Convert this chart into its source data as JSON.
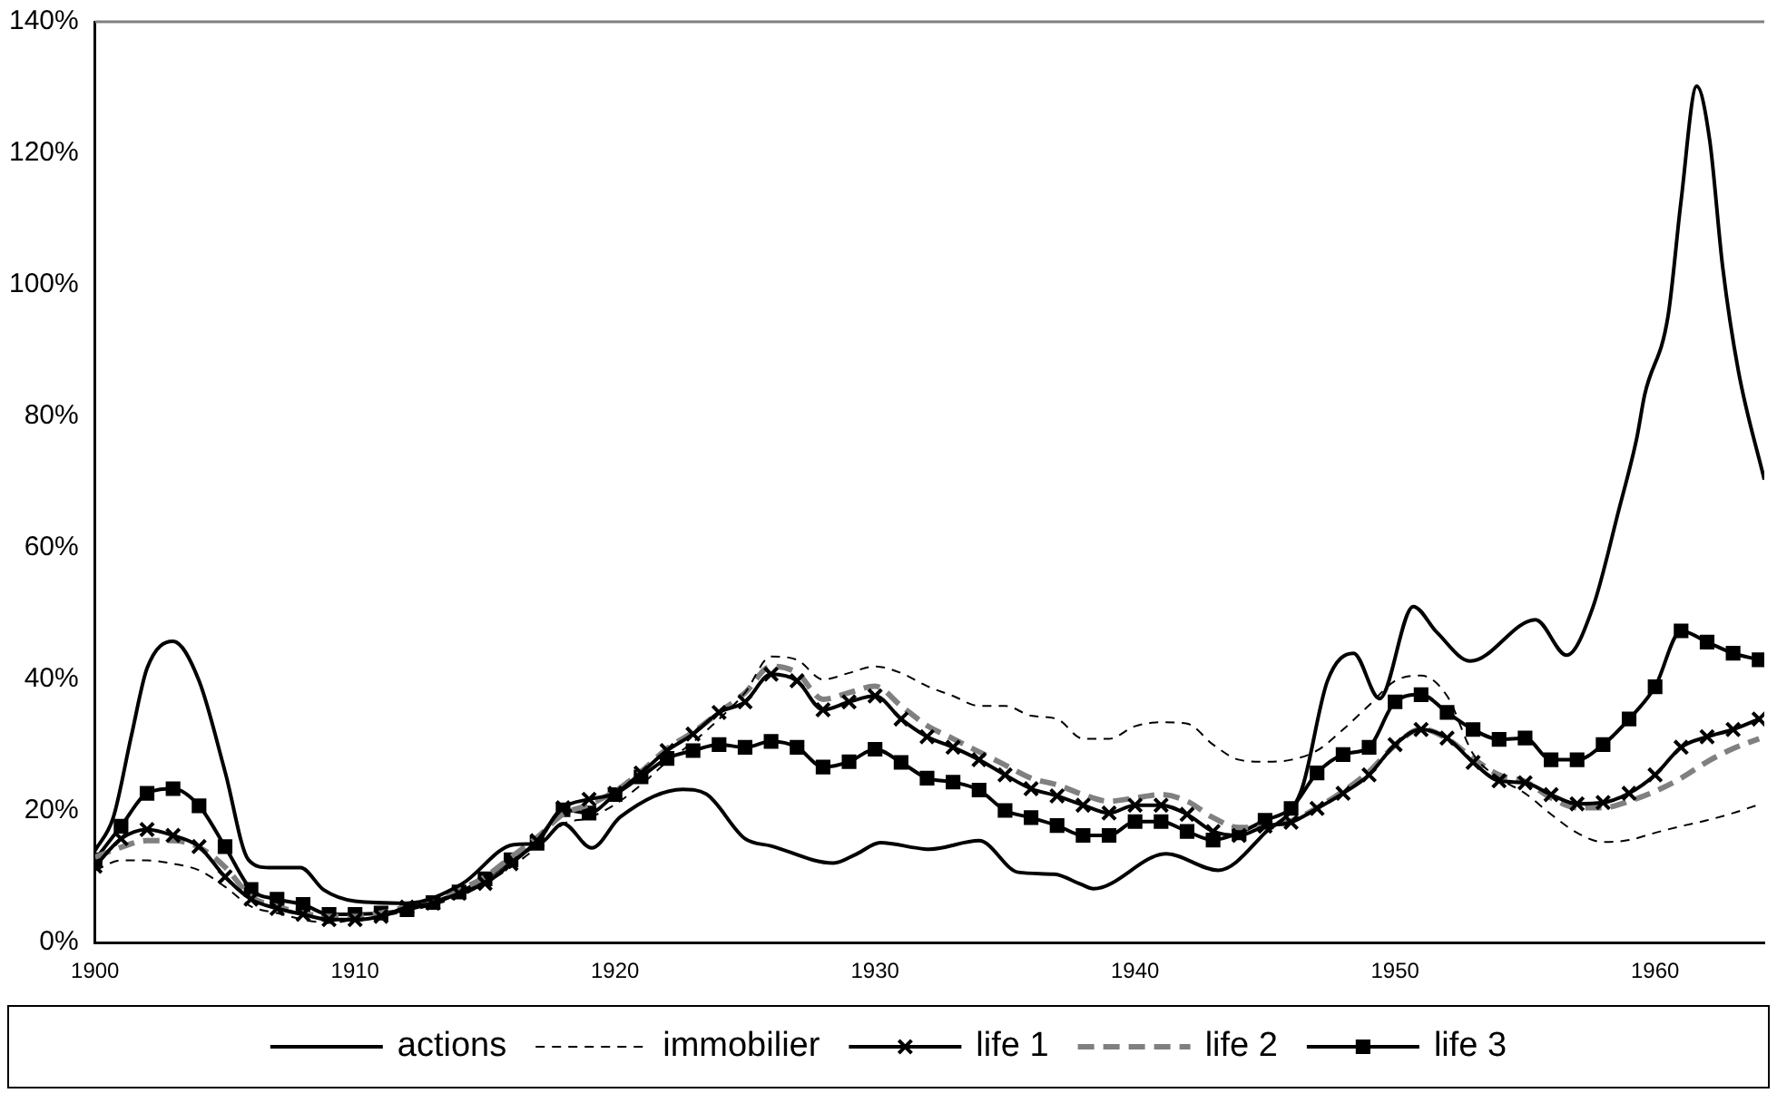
{
  "chart_data": {
    "type": "line",
    "x": [
      1900,
      1901,
      1902,
      1903,
      1904,
      1905,
      1906,
      1907,
      1908,
      1909,
      1910,
      1911,
      1912,
      1913,
      1914,
      1915,
      1916,
      1917,
      1918,
      1919,
      1920,
      1921,
      1922,
      1923,
      1924,
      1925,
      1926,
      1927,
      1928,
      1929,
      1930,
      1931,
      1932,
      1933,
      1934,
      1935,
      1936,
      1937,
      1938,
      1939,
      1940,
      1941,
      1942,
      1943,
      1944,
      1945,
      1946,
      1947,
      1948,
      1949,
      1950,
      1951,
      1952,
      1953,
      1954,
      1955,
      1956,
      1957,
      1958,
      1959,
      1960,
      1961,
      1962,
      1963,
      1964
    ],
    "series": [
      {
        "name": "actions",
        "color": "#000000",
        "line_style": "solid",
        "marker": "none",
        "x": [
          1900,
          1900.7,
          1901.4,
          1902,
          1903,
          1904,
          1905,
          1905.9,
          1906.7,
          1907.9,
          1908.8,
          1910,
          1912,
          1914.1,
          1916.1,
          1917.1,
          1918,
          1919.1,
          1920.2,
          1922.6,
          1923.5,
          1925,
          1926,
          1928.4,
          1929.3,
          1930.2,
          1932.1,
          1934,
          1935.5,
          1936.9,
          1937.9,
          1938.4,
          1941.2,
          1943.2,
          1945,
          1946.4,
          1947.4,
          1948.4,
          1949.4,
          1950.7,
          1951.6,
          1952.9,
          1955.4,
          1956.6,
          1957.6,
          1958.6,
          1959.3,
          1959.6,
          1960.5,
          1961,
          1961.6,
          1962.1,
          1962.6,
          1963.2,
          1964.2
        ],
        "values": [
          14,
          19,
          31.5,
          41.7,
          45.8,
          39.8,
          26,
          12.6,
          11.4,
          11.4,
          8,
          6.3,
          6,
          8.9,
          14.9,
          15.1,
          18.1,
          14.4,
          19.1,
          23.3,
          22.6,
          15.8,
          14.7,
          12.1,
          13.5,
          15.2,
          14.2,
          15.5,
          10.7,
          10.4,
          8.9,
          8.2,
          13.5,
          11,
          16.7,
          23.2,
          39.8,
          44,
          37.1,
          51.1,
          47.2,
          42.8,
          49.1,
          43.7,
          50.9,
          65.7,
          76.8,
          83.3,
          95.3,
          112.8,
          130.2,
          122,
          102.7,
          87,
          70.4
        ]
      },
      {
        "name": "immobilier",
        "color": "#000000",
        "line_style": "dashed",
        "marker": "none",
        "values": [
          11,
          12.5,
          12.5,
          12,
          11,
          8.5,
          5.5,
          4.5,
          3.5,
          3,
          3.5,
          4,
          null,
          null,
          7,
          9,
          11.5,
          14.5,
          18,
          19,
          21,
          24,
          27.5,
          30.5,
          34,
          38,
          43.5,
          43,
          40,
          41,
          42,
          41,
          39,
          37.5,
          36,
          36,
          34.5,
          34,
          31,
          31,
          32.9,
          33.5,
          33.3,
          30.1,
          27.8,
          27.5,
          27.8,
          29.2,
          32.4,
          36.1,
          39.8,
          40.6,
          37.5,
          28.7,
          25,
          22.7,
          19.5,
          16.7,
          15.3,
          15.6,
          16.7,
          17.7,
          18.6,
          19.7,
          21
        ]
      },
      {
        "name": "life 1",
        "color": "#000000",
        "line_style": "solid",
        "marker": "cross",
        "values": [
          11.6,
          15.8,
          17.2,
          16.3,
          14.6,
          10,
          6.6,
          5.2,
          4.3,
          3.5,
          3.5,
          4,
          5.4,
          6,
          7.5,
          9,
          12,
          15.5,
          20.5,
          21.8,
          22.7,
          25.8,
          29.2,
          31.7,
          35,
          36.6,
          40.8,
          39.8,
          35.4,
          36.6,
          37.5,
          34,
          31.3,
          29.7,
          27.8,
          25.5,
          23.4,
          22.3,
          20.9,
          19.7,
          20.9,
          20.9,
          19.5,
          16.9,
          16.3,
          17.7,
          18.3,
          20.4,
          22.7,
          25.5,
          30.1,
          32.4,
          31.1,
          27.4,
          24.6,
          24.3,
          22.5,
          21.1,
          21.3,
          22.7,
          25.5,
          29.7,
          31.3,
          32.4,
          34
        ]
      },
      {
        "name": "life 2",
        "color": "#808080",
        "line_style": "dashed",
        "marker": "none",
        "values": [
          13,
          14.5,
          15.5,
          15.5,
          14.5,
          11.5,
          7,
          5.5,
          4.5,
          4,
          4,
          4.5,
          5.5,
          6.5,
          8,
          10,
          13,
          16,
          19.5,
          21,
          23,
          26,
          29.5,
          32,
          35,
          38,
          42,
          41,
          37,
          38,
          39,
          36,
          33,
          31,
          29,
          27,
          25,
          24,
          22.5,
          21.5,
          22,
          22.5,
          21.5,
          19,
          17.5,
          17.5,
          18.5,
          20.5,
          23,
          26,
          30,
          32.5,
          31,
          28,
          25.5,
          24.5,
          22,
          20.5,
          20.5,
          21.5,
          23,
          25,
          27.5,
          29.5,
          31
        ]
      },
      {
        "name": "life 3",
        "color": "#000000",
        "line_style": "solid",
        "marker": "square",
        "values": [
          12.6,
          17.7,
          22.7,
          23.4,
          20.8,
          14.6,
          8.1,
          6.6,
          5.8,
          4.3,
          4.3,
          4.5,
          5,
          6.1,
          7.7,
          9.7,
          12.6,
          15.1,
          20.2,
          19.7,
          22.5,
          25.2,
          28,
          29.2,
          30.1,
          29.7,
          30.6,
          29.7,
          26.7,
          27.5,
          29.4,
          27.4,
          25,
          24.4,
          23.2,
          20.1,
          19,
          17.8,
          16.3,
          16.3,
          18.4,
          18.4,
          16.9,
          15.6,
          16.7,
          18.6,
          20.4,
          25.8,
          28.6,
          29.7,
          36.6,
          37.7,
          35,
          32.4,
          30.9,
          31.1,
          27.8,
          27.8,
          30.1,
          34,
          38.9,
          47.4,
          45.7,
          44,
          43
        ]
      }
    ],
    "xlim": [
      1900,
      1964.2
    ],
    "xticks": [
      1900,
      1910,
      1920,
      1930,
      1940,
      1950,
      1960
    ],
    "ylim": [
      0,
      140
    ],
    "yticks": [
      {
        "value": 0,
        "label": "0%"
      },
      {
        "value": 20,
        "label": "20%"
      },
      {
        "value": 40,
        "label": "40%"
      },
      {
        "value": 60,
        "label": "60%"
      },
      {
        "value": 80,
        "label": "80%"
      },
      {
        "value": 100,
        "label": "100%"
      },
      {
        "value": 120,
        "label": "120%"
      },
      {
        "value": 140,
        "label": "140%"
      }
    ],
    "grid": false,
    "legend": "bottom"
  }
}
